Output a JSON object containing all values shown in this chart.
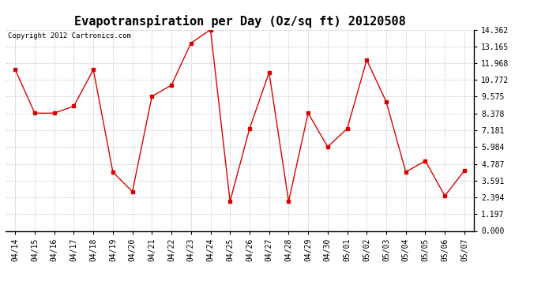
{
  "title": "Evapotranspiration per Day (Oz/sq ft) 20120508",
  "copyright": "Copyright 2012 Cartronics.com",
  "x_labels": [
    "04/14",
    "04/15",
    "04/16",
    "04/17",
    "04/18",
    "04/19",
    "04/20",
    "04/21",
    "04/22",
    "04/23",
    "04/24",
    "04/25",
    "04/26",
    "04/27",
    "04/28",
    "04/29",
    "04/30",
    "05/01",
    "05/02",
    "05/03",
    "05/04",
    "05/05",
    "05/06",
    "05/07"
  ],
  "y_values": [
    11.5,
    8.4,
    8.4,
    8.9,
    11.5,
    4.2,
    2.8,
    9.6,
    10.4,
    13.4,
    14.362,
    2.1,
    7.3,
    11.3,
    2.1,
    8.4,
    6.0,
    7.3,
    12.2,
    9.2,
    4.2,
    5.0,
    2.5,
    4.3
  ],
  "line_color": "#dd0000",
  "marker": "s",
  "marker_size": 2.5,
  "bg_color": "#ffffff",
  "plot_bg_color": "#ffffff",
  "grid_color": "#bbbbbb",
  "yticks": [
    0.0,
    1.197,
    2.394,
    3.591,
    4.787,
    5.984,
    7.181,
    8.378,
    9.575,
    10.772,
    11.968,
    13.165,
    14.362
  ],
  "ylim": [
    0.0,
    14.362
  ],
  "title_fontsize": 11,
  "copyright_fontsize": 6.5,
  "tick_fontsize": 7,
  "ytick_fontsize": 7
}
